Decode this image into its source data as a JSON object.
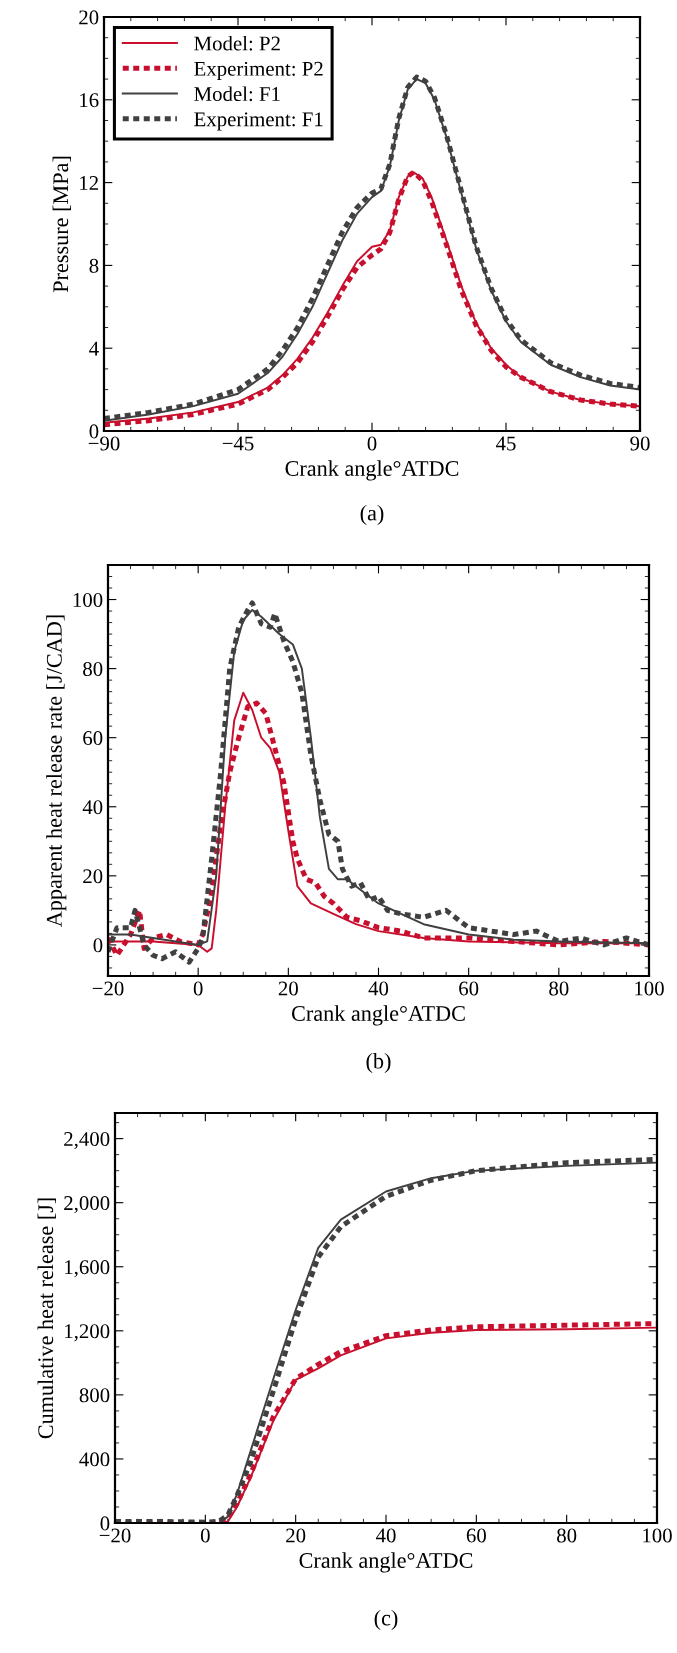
{
  "chart_data": [
    {
      "type": "line",
      "xlabel": "Crank angle°ATDC",
      "ylabel": "Pressure [MPa]",
      "annotations": [
        "(a)"
      ],
      "legend": "top left",
      "grid": false,
      "xlim": [
        -90,
        90
      ],
      "xticks": [
        {
          "value": -90,
          "label": "−90"
        },
        {
          "value": -45,
          "label": "−45"
        },
        0,
        45,
        90
      ],
      "ylim": [
        0,
        20
      ],
      "yticks": [
        0,
        4,
        8,
        12,
        16,
        20
      ],
      "series": [
        {
          "name": "Model: P2",
          "color": "#c8102e",
          "line_style": "solid",
          "x": [
            -90,
            -75,
            -60,
            -45,
            -35,
            -30,
            -25,
            -20,
            -15,
            -10,
            -5,
            0,
            3,
            6,
            9,
            12,
            14,
            17,
            20,
            25,
            30,
            35,
            40,
            45,
            50,
            60,
            70,
            80,
            90
          ],
          "values": [
            0.4,
            0.6,
            0.9,
            1.4,
            2.1,
            2.7,
            3.5,
            4.5,
            5.7,
            7.0,
            8.2,
            8.9,
            9.0,
            9.7,
            11.3,
            12.3,
            12.5,
            12.2,
            11.3,
            9.2,
            7.0,
            5.2,
            4.0,
            3.2,
            2.6,
            1.9,
            1.5,
            1.3,
            1.2
          ]
        },
        {
          "name": "Experiment: P2",
          "color": "#c8102e",
          "line_style": "dashed",
          "x": [
            -90,
            -75,
            -60,
            -45,
            -35,
            -30,
            -25,
            -20,
            -15,
            -10,
            -5,
            0,
            3,
            6,
            9,
            12,
            14,
            17,
            20,
            25,
            30,
            35,
            40,
            45,
            50,
            60,
            70,
            80,
            90
          ],
          "values": [
            0.3,
            0.5,
            0.8,
            1.3,
            2.0,
            2.6,
            3.3,
            4.3,
            5.5,
            6.8,
            7.9,
            8.5,
            8.8,
            9.6,
            11.2,
            12.3,
            12.5,
            12.1,
            11.1,
            9.0,
            6.8,
            5.1,
            3.9,
            3.1,
            2.6,
            1.9,
            1.5,
            1.3,
            1.2
          ]
        },
        {
          "name": "Model: F1",
          "color": "#404040",
          "line_style": "solid",
          "x": [
            -90,
            -75,
            -60,
            -45,
            -35,
            -30,
            -25,
            -20,
            -15,
            -10,
            -5,
            0,
            3,
            6,
            9,
            12,
            15,
            18,
            21,
            25,
            30,
            35,
            40,
            45,
            50,
            60,
            70,
            80,
            90
          ],
          "values": [
            0.5,
            0.8,
            1.2,
            1.8,
            2.8,
            3.6,
            4.7,
            6.0,
            7.6,
            9.2,
            10.5,
            11.3,
            11.6,
            12.8,
            15.0,
            16.5,
            17.0,
            16.8,
            16.0,
            14.2,
            11.5,
            8.8,
            6.8,
            5.3,
            4.3,
            3.2,
            2.6,
            2.2,
            2.0
          ]
        },
        {
          "name": "Experiment: F1",
          "color": "#404040",
          "line_style": "dashed",
          "x": [
            -90,
            -75,
            -60,
            -45,
            -35,
            -30,
            -25,
            -20,
            -15,
            -10,
            -5,
            0,
            3,
            6,
            9,
            12,
            15,
            18,
            21,
            25,
            30,
            35,
            40,
            45,
            50,
            60,
            70,
            80,
            90
          ],
          "values": [
            0.6,
            0.9,
            1.3,
            2.0,
            3.0,
            3.9,
            5.0,
            6.4,
            8.0,
            9.6,
            10.8,
            11.5,
            11.7,
            12.9,
            15.1,
            16.6,
            17.1,
            16.9,
            16.1,
            14.3,
            11.6,
            8.9,
            6.9,
            5.4,
            4.4,
            3.3,
            2.7,
            2.3,
            2.1
          ]
        }
      ]
    },
    {
      "type": "line",
      "xlabel": "Crank angle°ATDC",
      "ylabel": "Apparent heat release rate [J/CAD]",
      "annotations": [
        "(b)"
      ],
      "grid": false,
      "xlim": [
        -20,
        100
      ],
      "xticks": [
        {
          "value": -20,
          "label": "−20"
        },
        0,
        20,
        40,
        60,
        80,
        100
      ],
      "ylim": [
        -9,
        110
      ],
      "yticks": [
        0,
        20,
        40,
        60,
        80,
        100
      ],
      "series": [
        {
          "color": "#c8102e",
          "line_style": "solid",
          "x": [
            -20,
            -10,
            0,
            2,
            3,
            4,
            6,
            8,
            10,
            12,
            14,
            16,
            18,
            20,
            22,
            25,
            30,
            35,
            40,
            50,
            60,
            80,
            100
          ],
          "values": [
            1,
            1,
            0,
            -2,
            -1,
            10,
            40,
            65,
            73,
            68,
            60,
            57,
            50,
            33,
            17,
            12,
            9,
            6,
            4,
            2,
            1,
            0.5,
            0.5
          ]
        },
        {
          "color": "#c8102e",
          "line_style": "dashed",
          "x": [
            -20,
            -18,
            -15,
            -13,
            -12,
            -10,
            -7,
            -4,
            0,
            1,
            3,
            5,
            7,
            9,
            11,
            13,
            15,
            17,
            19,
            21,
            22,
            24,
            26,
            28,
            30,
            33,
            36,
            40,
            45,
            50,
            60,
            70,
            80,
            90,
            100
          ],
          "values": [
            2,
            -3,
            3,
            10,
            -1,
            2,
            3,
            1,
            0,
            3,
            15,
            35,
            50,
            60,
            69,
            70,
            67,
            57,
            47,
            30,
            25,
            19,
            18,
            14,
            12,
            8,
            7,
            5,
            4,
            2,
            2,
            1,
            0,
            1,
            0
          ]
        },
        {
          "color": "#404040",
          "line_style": "solid",
          "x": [
            -20,
            -15,
            -10,
            0,
            2,
            4,
            6,
            8,
            10,
            12,
            14,
            18,
            21,
            23,
            25,
            27,
            29,
            31,
            33,
            36,
            40,
            45,
            50,
            60,
            70,
            80,
            100
          ],
          "values": [
            3,
            3,
            2,
            0,
            1,
            20,
            60,
            85,
            94,
            97,
            95,
            90,
            87,
            80,
            60,
            37,
            22,
            19,
            19,
            16,
            12,
            9,
            6,
            3,
            1.5,
            1,
            0.5
          ]
        },
        {
          "color": "#404040",
          "line_style": "dashed",
          "x": [
            -20,
            -18,
            -15,
            -14,
            -12,
            -10,
            -8,
            -5,
            -2,
            0,
            1,
            3,
            5,
            7,
            9,
            11,
            12,
            14,
            16,
            17,
            19,
            21,
            23,
            25,
            27,
            29,
            31,
            32,
            34,
            36,
            38,
            40,
            42,
            45,
            50,
            55,
            60,
            65,
            70,
            75,
            80,
            85,
            90,
            95,
            100
          ],
          "values": [
            -2,
            5,
            5,
            10,
            0,
            -3,
            -4,
            -2,
            -5,
            -1,
            2,
            25,
            50,
            80,
            92,
            97,
            99,
            93,
            92,
            96,
            88,
            82,
            73,
            55,
            42,
            32,
            30,
            22,
            17,
            18,
            13,
            14,
            10,
            9,
            8,
            10,
            5,
            4,
            3,
            4,
            1,
            2,
            0,
            2,
            0
          ]
        }
      ]
    },
    {
      "type": "line",
      "xlabel": "Crank angle°ATDC",
      "ylabel": "Cumulative heat release [J]",
      "annotations": [
        "(c)"
      ],
      "grid": false,
      "xlim": [
        -20,
        100
      ],
      "xticks": [
        {
          "value": -20,
          "label": "−20"
        },
        0,
        20,
        40,
        60,
        80,
        100
      ],
      "ylim": [
        0,
        2560
      ],
      "yticks": [
        0,
        400,
        800,
        {
          "value": 1200,
          "label": "1,200"
        },
        {
          "value": 1600,
          "label": "1,600"
        },
        {
          "value": 2000,
          "label": "2,000"
        },
        {
          "value": 2400,
          "label": "2,400"
        }
      ],
      "series": [
        {
          "color": "#c8102e",
          "line_style": "solid",
          "x": [
            -20,
            0,
            4,
            5,
            7,
            10,
            15,
            20,
            25,
            30,
            40,
            50,
            60,
            80,
            100
          ],
          "values": [
            0,
            0,
            0,
            10,
            100,
            282,
            635,
            894,
            965,
            1047,
            1153,
            1188,
            1205,
            1210,
            1220
          ]
        },
        {
          "color": "#c8102e",
          "line_style": "dashed",
          "x": [
            -20,
            0,
            3,
            5,
            7,
            10,
            15,
            20,
            25,
            30,
            40,
            50,
            60,
            80,
            100
          ],
          "values": [
            0,
            0,
            0,
            30,
            120,
            300,
            660,
            900,
            990,
            1070,
            1170,
            1205,
            1225,
            1235,
            1245
          ]
        },
        {
          "color": "#404040",
          "line_style": "solid",
          "x": [
            -20,
            0,
            3,
            5,
            7,
            10,
            15,
            20,
            25,
            30,
            40,
            50,
            60,
            80,
            100
          ],
          "values": [
            0,
            0,
            0,
            40,
            180,
            447,
            894,
            1330,
            1718,
            1894,
            2070,
            2153,
            2200,
            2230,
            2250
          ]
        },
        {
          "color": "#404040",
          "line_style": "dashed",
          "x": [
            -20,
            -10,
            0,
            3,
            5,
            7,
            10,
            15,
            20,
            25,
            30,
            40,
            50,
            60,
            80,
            100
          ],
          "values": [
            10,
            10,
            5,
            10,
            50,
            170,
            380,
            820,
            1270,
            1660,
            1850,
            2040,
            2140,
            2200,
            2250,
            2270
          ]
        }
      ]
    }
  ]
}
